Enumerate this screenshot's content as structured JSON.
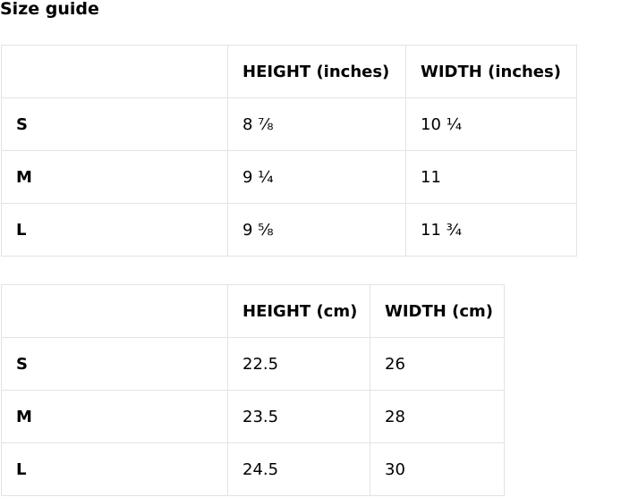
{
  "title": "Size guide",
  "tables": [
    {
      "headers": [
        "",
        "HEIGHT (inches)",
        "WIDTH (inches)"
      ],
      "rows": [
        {
          "size": "S",
          "height": "8 ⅞",
          "width": "10 ¼"
        },
        {
          "size": "M",
          "height": "9 ¼",
          "width": "11"
        },
        {
          "size": "L",
          "height": "9 ⅝",
          "width": "11 ¾"
        }
      ]
    },
    {
      "headers": [
        "",
        "HEIGHT (cm)",
        "WIDTH (cm)"
      ],
      "rows": [
        {
          "size": "S",
          "height": "22.5",
          "width": "26"
        },
        {
          "size": "M",
          "height": "23.5",
          "width": "28"
        },
        {
          "size": "L",
          "height": "24.5",
          "width": "30"
        }
      ]
    }
  ]
}
